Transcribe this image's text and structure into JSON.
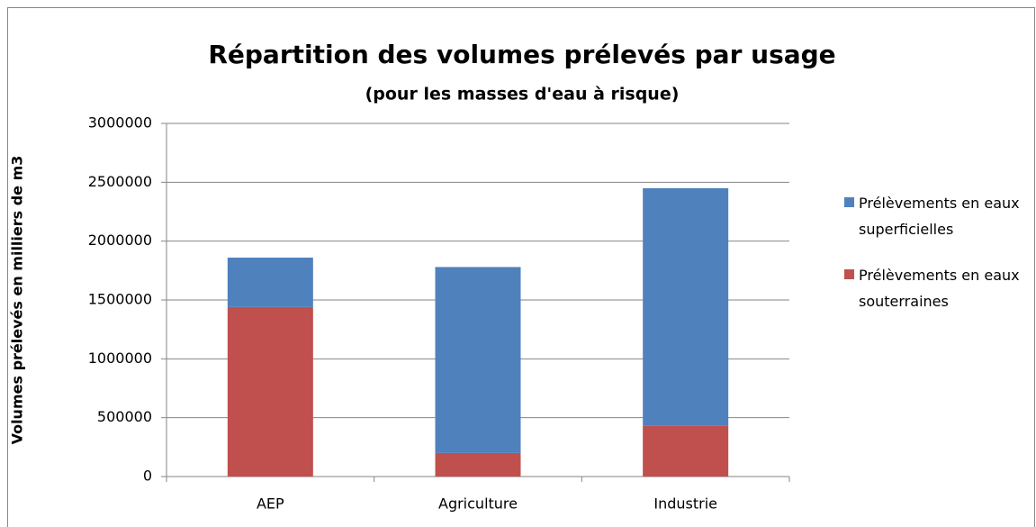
{
  "chart_data": {
    "type": "stacked_bar",
    "title": "Répartition des volumes prélevés par usage",
    "subtitle": "(pour les masses d'eau à risque)",
    "y_label": "Volumes prélevés en milliers de m3",
    "categories": [
      "AEP",
      "Agriculture",
      "Industrie"
    ],
    "series": [
      {
        "name": "Prélèvements en eaux superficielles",
        "color": "#4f81bd",
        "values": [
          420000,
          1580000,
          2020000
        ]
      },
      {
        "name": "Prélèvements en eaux souterraines",
        "color": "#c0504d",
        "values": [
          1440000,
          200000,
          430000
        ]
      }
    ],
    "ylim": [
      0,
      3000000
    ],
    "yticks": [
      0,
      500000,
      1000000,
      1500000,
      2000000,
      2500000,
      3000000
    ],
    "grid": true,
    "legend": "right"
  }
}
